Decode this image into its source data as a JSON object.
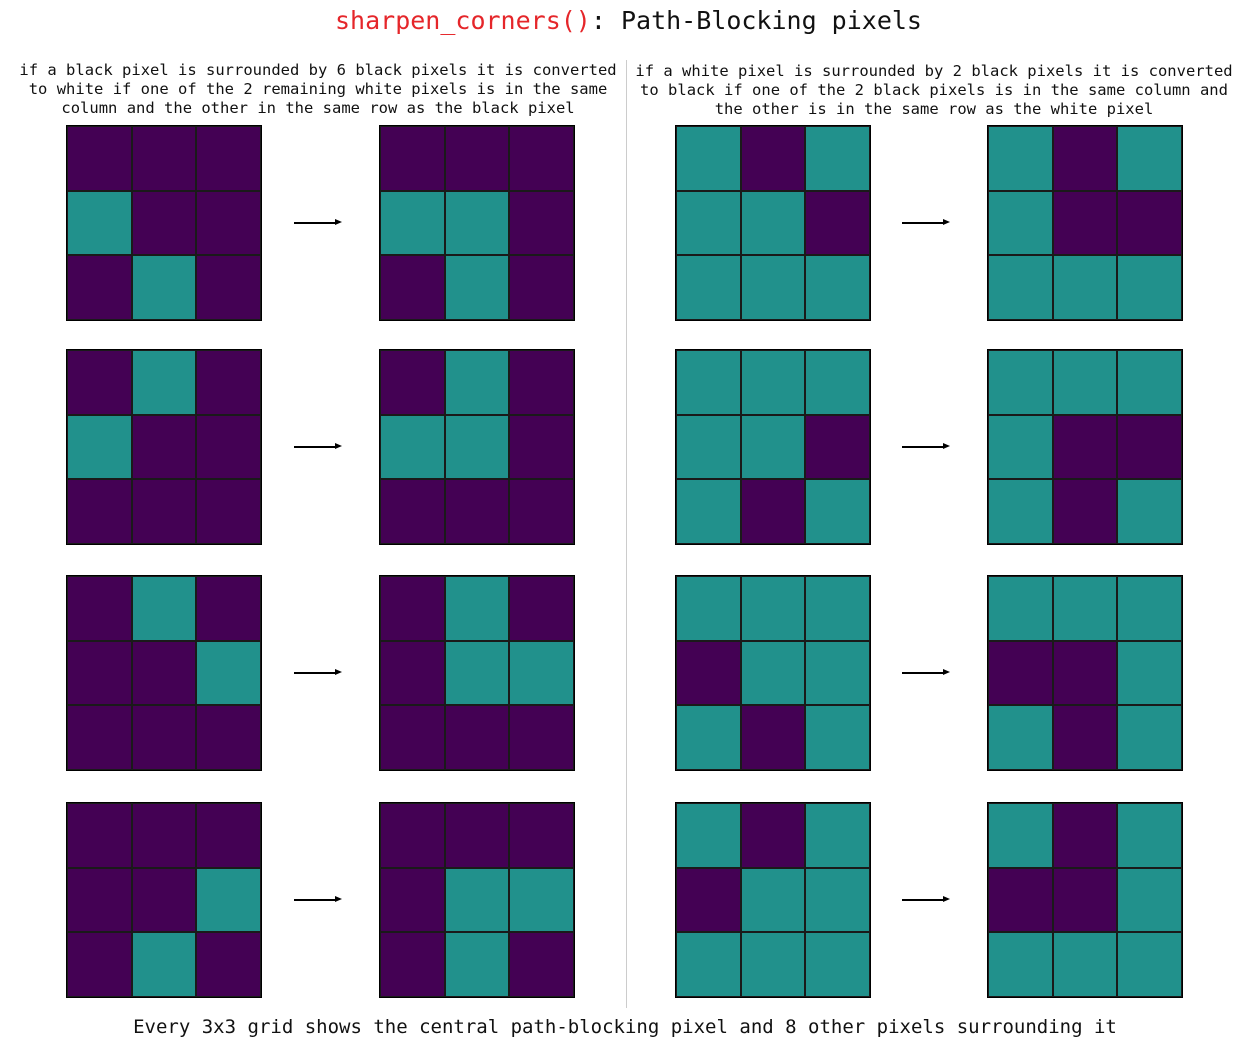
{
  "title": {
    "function_name": "sharpen_corners()",
    "rest": ": Path-Blocking pixels"
  },
  "left_description": "if a black pixel is surrounded by 6 black pixels it is converted to white if one of the 2 remaining white pixels is in the same column and the other in the same row as the black pixel",
  "right_description": "if a white pixel is surrounded by 2 black pixels it is converted to black if one of the 2 black pixels is in the same column and the other is in the same row as the white pixel",
  "footer": "Every 3x3 grid shows the central path-blocking pixel and 8 other pixels surrounding it",
  "colors": {
    "black_pixel": "#440154",
    "white_pixel": "#21918c",
    "title_function": "#e5262a"
  },
  "legend_note": "cell value 1 = dark purple (black pixel), 0 = teal (white pixel)",
  "left_examples": [
    {
      "before": [
        [
          1,
          1,
          1
        ],
        [
          0,
          1,
          1
        ],
        [
          1,
          0,
          1
        ]
      ],
      "after": [
        [
          1,
          1,
          1
        ],
        [
          0,
          0,
          1
        ],
        [
          1,
          0,
          1
        ]
      ]
    },
    {
      "before": [
        [
          1,
          0,
          1
        ],
        [
          0,
          1,
          1
        ],
        [
          1,
          1,
          1
        ]
      ],
      "after": [
        [
          1,
          0,
          1
        ],
        [
          0,
          0,
          1
        ],
        [
          1,
          1,
          1
        ]
      ]
    },
    {
      "before": [
        [
          1,
          0,
          1
        ],
        [
          1,
          1,
          0
        ],
        [
          1,
          1,
          1
        ]
      ],
      "after": [
        [
          1,
          0,
          1
        ],
        [
          1,
          0,
          0
        ],
        [
          1,
          1,
          1
        ]
      ]
    },
    {
      "before": [
        [
          1,
          1,
          1
        ],
        [
          1,
          1,
          0
        ],
        [
          1,
          0,
          1
        ]
      ],
      "after": [
        [
          1,
          1,
          1
        ],
        [
          1,
          0,
          0
        ],
        [
          1,
          0,
          1
        ]
      ]
    }
  ],
  "right_examples": [
    {
      "before": [
        [
          0,
          1,
          0
        ],
        [
          0,
          0,
          1
        ],
        [
          0,
          0,
          0
        ]
      ],
      "after": [
        [
          0,
          1,
          0
        ],
        [
          0,
          1,
          1
        ],
        [
          0,
          0,
          0
        ]
      ]
    },
    {
      "before": [
        [
          0,
          0,
          0
        ],
        [
          0,
          0,
          1
        ],
        [
          0,
          1,
          0
        ]
      ],
      "after": [
        [
          0,
          0,
          0
        ],
        [
          0,
          1,
          1
        ],
        [
          0,
          1,
          0
        ]
      ]
    },
    {
      "before": [
        [
          0,
          0,
          0
        ],
        [
          1,
          0,
          0
        ],
        [
          0,
          1,
          0
        ]
      ],
      "after": [
        [
          0,
          0,
          0
        ],
        [
          1,
          1,
          0
        ],
        [
          0,
          1,
          0
        ]
      ]
    },
    {
      "before": [
        [
          0,
          1,
          0
        ],
        [
          1,
          0,
          0
        ],
        [
          0,
          0,
          0
        ]
      ],
      "after": [
        [
          0,
          1,
          0
        ],
        [
          1,
          1,
          0
        ],
        [
          0,
          0,
          0
        ]
      ]
    }
  ]
}
